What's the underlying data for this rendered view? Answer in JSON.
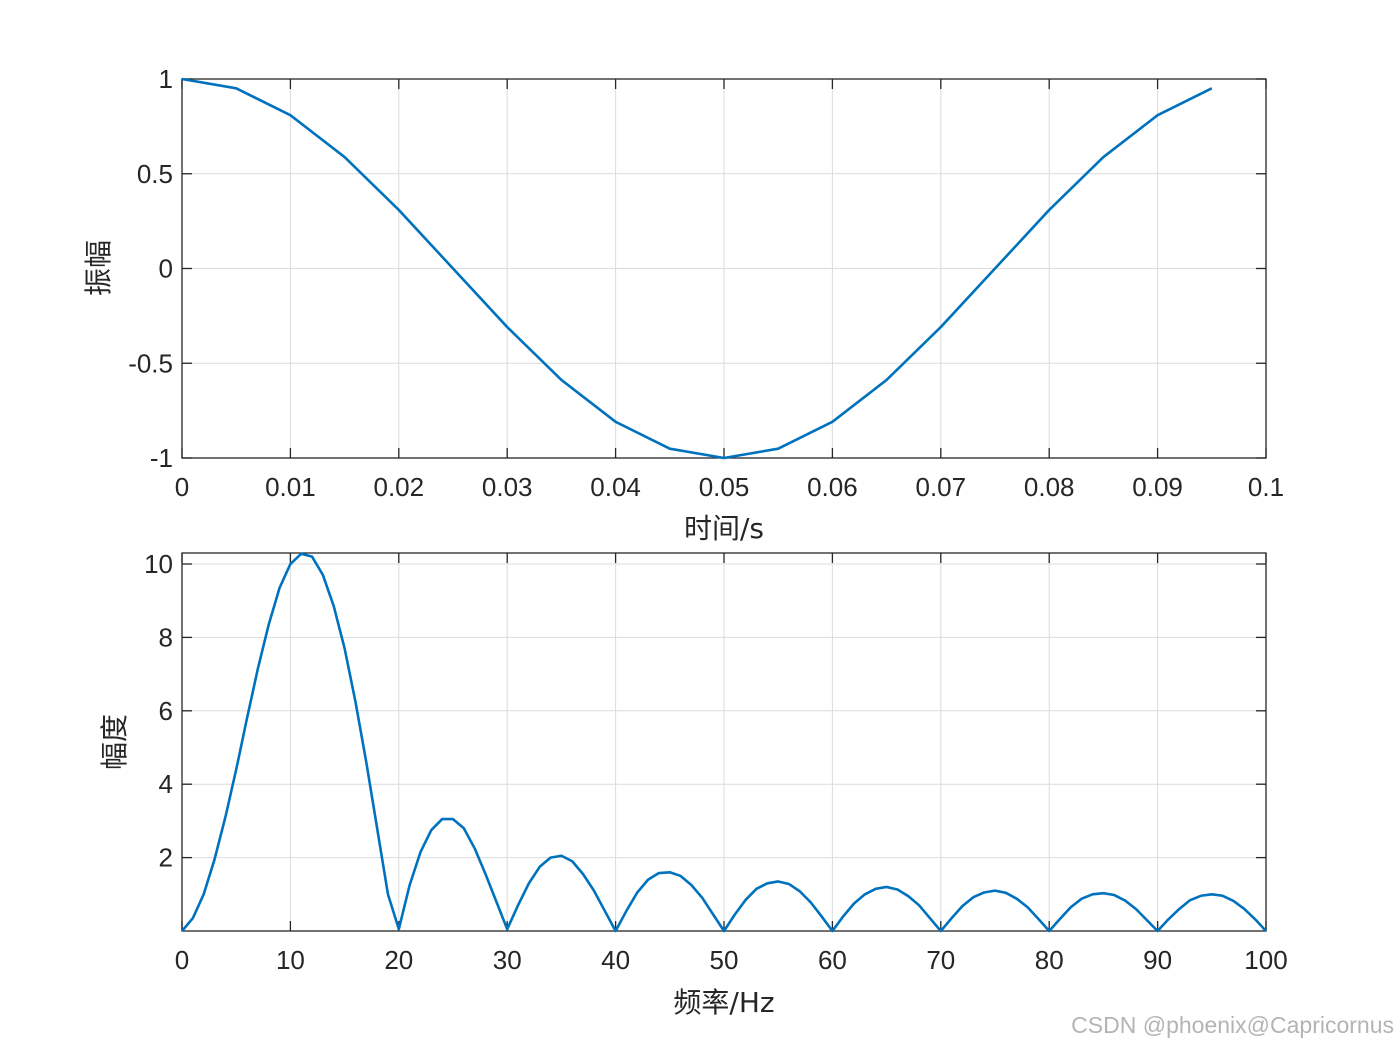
{
  "chart_data": [
    {
      "type": "line",
      "xlabel": "时间/s",
      "ylabel": "振幅",
      "xlim": [
        0,
        0.1
      ],
      "ylim": [
        -1,
        1
      ],
      "grid": true,
      "xticks": [
        "0",
        "0.01",
        "0.02",
        "0.03",
        "0.04",
        "0.05",
        "0.06",
        "0.07",
        "0.08",
        "0.09",
        "0.1"
      ],
      "yticks": [
        "1",
        "0.5",
        "0",
        "-0.5",
        "-1"
      ],
      "line_color": "#0072BD",
      "x": [
        0,
        0.005,
        0.01,
        0.015,
        0.02,
        0.025,
        0.03,
        0.035,
        0.04,
        0.045,
        0.05,
        0.055,
        0.06,
        0.065,
        0.07,
        0.075,
        0.08,
        0.085,
        0.09,
        0.095
      ],
      "y": [
        1,
        0.951,
        0.809,
        0.588,
        0.309,
        0,
        -0.309,
        -0.588,
        -0.809,
        -0.951,
        -1,
        -0.951,
        -0.809,
        -0.588,
        -0.309,
        0,
        0.309,
        0.588,
        0.809,
        0.951
      ]
    },
    {
      "type": "line",
      "xlabel": "频率/Hz",
      "ylabel": "幅度",
      "xlim": [
        0,
        100
      ],
      "ylim": [
        0,
        10.3
      ],
      "grid": true,
      "xticks": [
        "0",
        "10",
        "20",
        "30",
        "40",
        "50",
        "60",
        "70",
        "80",
        "90",
        "100"
      ],
      "yticks": [
        "10",
        "8",
        "6",
        "4",
        "2"
      ],
      "line_color": "#0072BD",
      "x": [
        0,
        1,
        2,
        3,
        4,
        5,
        6,
        7,
        8,
        9,
        10,
        11,
        12,
        13,
        14,
        15,
        16,
        17,
        18,
        19,
        20,
        21,
        22,
        23,
        24,
        25,
        26,
        27,
        28,
        29,
        30,
        31,
        32,
        33,
        34,
        35,
        36,
        37,
        38,
        39,
        40,
        41,
        42,
        43,
        44,
        45,
        46,
        47,
        48,
        49,
        50,
        51,
        52,
        53,
        54,
        55,
        56,
        57,
        58,
        59,
        60,
        61,
        62,
        63,
        64,
        65,
        66,
        67,
        68,
        69,
        70,
        71,
        72,
        73,
        74,
        75,
        76,
        77,
        78,
        79,
        80,
        81,
        82,
        83,
        84,
        85,
        86,
        87,
        88,
        89,
        90,
        91,
        92,
        93,
        94,
        95,
        96,
        97,
        98,
        99,
        100
      ],
      "y": [
        0,
        0.35,
        1.0,
        1.95,
        3.1,
        4.4,
        5.8,
        7.15,
        8.35,
        9.35,
        10.0,
        10.28,
        10.2,
        9.7,
        8.85,
        7.7,
        6.25,
        4.6,
        2.8,
        1.0,
        0.05,
        1.25,
        2.15,
        2.75,
        3.05,
        3.05,
        2.8,
        2.25,
        1.55,
        0.8,
        0.05,
        0.7,
        1.3,
        1.75,
        2.0,
        2.05,
        1.9,
        1.55,
        1.1,
        0.55,
        0.0,
        0.55,
        1.05,
        1.4,
        1.58,
        1.6,
        1.5,
        1.25,
        0.9,
        0.45,
        0.0,
        0.45,
        0.85,
        1.15,
        1.3,
        1.35,
        1.28,
        1.08,
        0.78,
        0.4,
        0.0,
        0.4,
        0.75,
        1.0,
        1.15,
        1.2,
        1.13,
        0.95,
        0.7,
        0.35,
        0.0,
        0.35,
        0.68,
        0.92,
        1.05,
        1.1,
        1.04,
        0.88,
        0.65,
        0.33,
        0.0,
        0.33,
        0.65,
        0.88,
        1.0,
        1.03,
        0.98,
        0.83,
        0.6,
        0.3,
        0.0,
        0.32,
        0.6,
        0.84,
        0.96,
        1.0,
        0.96,
        0.82,
        0.6,
        0.32,
        0.0
      ]
    }
  ],
  "watermark": "CSDN @phoenix@Capricornus"
}
